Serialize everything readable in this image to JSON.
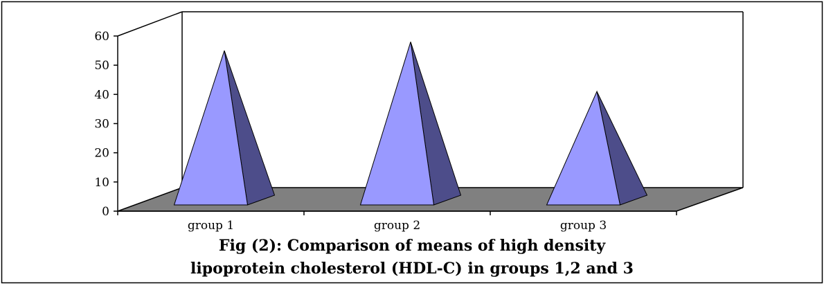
{
  "chart_data": {
    "type": "bar",
    "style": "3d-pyramid",
    "categories": [
      "group 1",
      "group 2",
      "group 3"
    ],
    "values": [
      55,
      58,
      41
    ],
    "ylim": [
      0,
      60
    ],
    "yticks": [
      "0",
      "10",
      "20",
      "30",
      "40",
      "50",
      "60"
    ],
    "grid": false,
    "legend": "none",
    "caption_lines": [
      "Fig (2): Comparison of means of high density",
      "lipoprotein cholesterol (HDL-C) in groups 1,2 and 3"
    ],
    "colors": {
      "front_face": "#9999ff",
      "side_face": "#4d4d8a",
      "floor": "#808080"
    }
  }
}
